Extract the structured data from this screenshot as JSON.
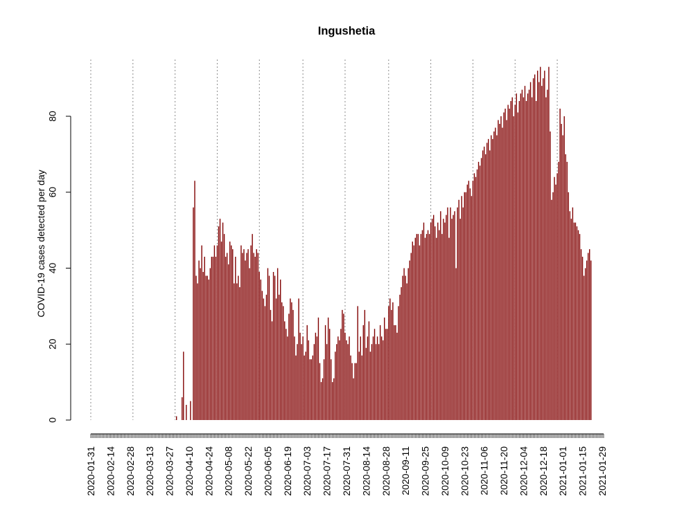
{
  "chart_data": {
    "type": "bar",
    "title": "Ingushetia",
    "xlabel": "",
    "ylabel": "COVID-19 cases detected per day",
    "x_start": "2020-01-31",
    "x_end": "2021-01-30",
    "ylim": [
      0,
      92
    ],
    "yticks": [
      0,
      20,
      40,
      60,
      80
    ],
    "xtick_labels": [
      "2020-01-31",
      "2020-02-14",
      "2020-02-28",
      "2020-03-13",
      "2020-03-27",
      "2020-04-10",
      "2020-04-24",
      "2020-05-08",
      "2020-05-22",
      "2020-06-05",
      "2020-06-19",
      "2020-07-03",
      "2020-07-17",
      "2020-07-31",
      "2020-08-14",
      "2020-08-28",
      "2020-09-11",
      "2020-09-25",
      "2020-10-09",
      "2020-10-23",
      "2020-11-06",
      "2020-11-20",
      "2020-12-04",
      "2020-12-18",
      "2021-01-01",
      "2021-01-15",
      "2021-01-29"
    ],
    "gridline_dates": [
      "2020-01-31",
      "2020-03-01",
      "2020-03-31",
      "2020-04-30",
      "2020-05-30",
      "2020-06-30",
      "2020-07-30",
      "2020-08-30",
      "2020-09-29",
      "2020-10-29",
      "2020-11-28",
      "2020-12-28"
    ],
    "grid": "vertical dotted",
    "bar_color": "#800000",
    "values": [
      0,
      0,
      0,
      0,
      0,
      0,
      0,
      0,
      0,
      0,
      0,
      0,
      0,
      0,
      0,
      0,
      0,
      0,
      0,
      0,
      0,
      0,
      0,
      0,
      0,
      0,
      0,
      0,
      0,
      0,
      0,
      0,
      0,
      0,
      0,
      0,
      0,
      0,
      0,
      0,
      0,
      0,
      0,
      0,
      0,
      0,
      0,
      0,
      0,
      0,
      0,
      0,
      0,
      0,
      0,
      0,
      0,
      0,
      0,
      0,
      0,
      1,
      0,
      0,
      0,
      6,
      18,
      0,
      4,
      0,
      0,
      5,
      0,
      56,
      63,
      38,
      36,
      42,
      40,
      46,
      39,
      43,
      38,
      38,
      37,
      40,
      43,
      43,
      46,
      43,
      46,
      51,
      53,
      47,
      52,
      49,
      43,
      44,
      41,
      47,
      46,
      45,
      36,
      43,
      36,
      38,
      35,
      46,
      44,
      45,
      42,
      44,
      45,
      40,
      46,
      49,
      44,
      43,
      45,
      44,
      39,
      37,
      34,
      32,
      30,
      33,
      40,
      38,
      29,
      26,
      39,
      38,
      32,
      40,
      33,
      37,
      31,
      30,
      26,
      24,
      22,
      28,
      32,
      31,
      29,
      22,
      17,
      20,
      32,
      23,
      20,
      22,
      17,
      18,
      25,
      21,
      16,
      16,
      17,
      20,
      23,
      22,
      27,
      15,
      10,
      11,
      16,
      25,
      20,
      27,
      24,
      16,
      10,
      11,
      18,
      20,
      22,
      21,
      24,
      29,
      28,
      23,
      21,
      20,
      22,
      17,
      15,
      11,
      15,
      15,
      30,
      18,
      22,
      17,
      25,
      29,
      19,
      22,
      26,
      18,
      20,
      22,
      24,
      20,
      22,
      20,
      25,
      22,
      21,
      27,
      24,
      24,
      30,
      32,
      29,
      31,
      25,
      25,
      23,
      30,
      33,
      35,
      38,
      40,
      38,
      36,
      40,
      42,
      44,
      47,
      46,
      48,
      49,
      49,
      46,
      49,
      50,
      52,
      48,
      49,
      50,
      49,
      52,
      53,
      54,
      51,
      48,
      52,
      50,
      55,
      49,
      53,
      52,
      54,
      56,
      48,
      56,
      53,
      54,
      55,
      40,
      56,
      58,
      53,
      59,
      56,
      60,
      60,
      62,
      63,
      61,
      59,
      63,
      65,
      64,
      66,
      68,
      67,
      69,
      71,
      72,
      70,
      73,
      74,
      71,
      75,
      74,
      76,
      77,
      75,
      79,
      78,
      80,
      77,
      81,
      82,
      79,
      83,
      82,
      84,
      85,
      80,
      83,
      86,
      81,
      84,
      86,
      87,
      85,
      88,
      84,
      86,
      87,
      89,
      85,
      90,
      91,
      84,
      92,
      89,
      93,
      88,
      90,
      92,
      85,
      87,
      93,
      76,
      58,
      60,
      64,
      62,
      65,
      68,
      82,
      78,
      75,
      80,
      70,
      68,
      60,
      55,
      53,
      56,
      52,
      52,
      51,
      50,
      49,
      45,
      43,
      38,
      40,
      42,
      44,
      45,
      42
    ]
  }
}
